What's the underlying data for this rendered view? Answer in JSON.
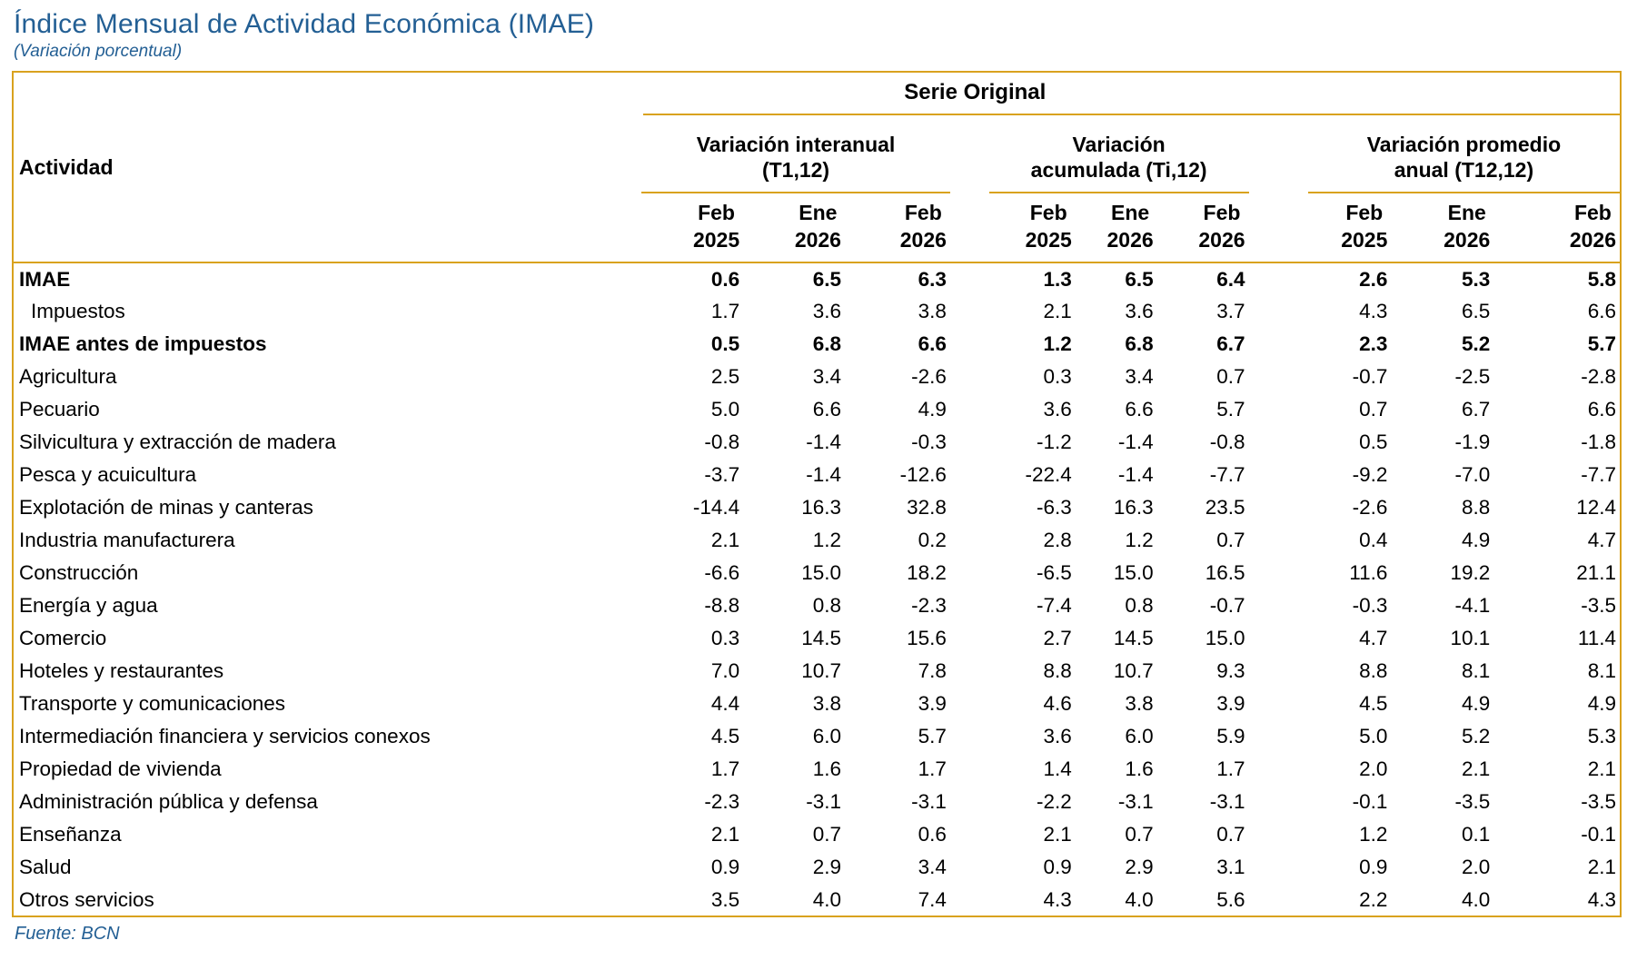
{
  "header": {
    "title": "Índice Mensual de Actividad Económica (IMAE)",
    "subtitle": "(Variación porcentual)"
  },
  "footer": {
    "source": "Fuente: BCN"
  },
  "colors": {
    "accent_gold": "#D9A21E",
    "heading_blue": "#235F94",
    "text": "#000000"
  },
  "table": {
    "activity_header": "Actividad",
    "series_header": "Serie Original",
    "groups": [
      {
        "line1": "Variación interanual",
        "line2": "(T1,12)"
      },
      {
        "line1": "Variación",
        "line2": "acumulada (Ti,12)"
      },
      {
        "line1": "Variación promedio",
        "line2": "anual (T12,12)"
      }
    ],
    "periods": [
      {
        "month": "Feb",
        "year": "2025"
      },
      {
        "month": "Ene",
        "year": "2026"
      },
      {
        "month": "Feb",
        "year": "2026"
      },
      {
        "month": "Feb",
        "year": "2025"
      },
      {
        "month": "Ene",
        "year": "2026"
      },
      {
        "month": "Feb",
        "year": "2026"
      },
      {
        "month": "Feb",
        "year": "2025"
      },
      {
        "month": "Ene",
        "year": "2026"
      },
      {
        "month": "Feb",
        "year": "2026"
      }
    ],
    "rows": [
      {
        "label": "IMAE",
        "bold": true,
        "indent": false,
        "values": [
          "0.6",
          "6.5",
          "6.3",
          "1.3",
          "6.5",
          "6.4",
          "2.6",
          "5.3",
          "5.8"
        ]
      },
      {
        "label": "Impuestos",
        "bold": false,
        "indent": true,
        "values": [
          "1.7",
          "3.6",
          "3.8",
          "2.1",
          "3.6",
          "3.7",
          "4.3",
          "6.5",
          "6.6"
        ]
      },
      {
        "label": "IMAE antes de impuestos",
        "bold": true,
        "indent": false,
        "values": [
          "0.5",
          "6.8",
          "6.6",
          "1.2",
          "6.8",
          "6.7",
          "2.3",
          "5.2",
          "5.7"
        ]
      },
      {
        "label": "Agricultura",
        "bold": false,
        "indent": false,
        "values": [
          "2.5",
          "3.4",
          "-2.6",
          "0.3",
          "3.4",
          "0.7",
          "-0.7",
          "-2.5",
          "-2.8"
        ]
      },
      {
        "label": "Pecuario",
        "bold": false,
        "indent": false,
        "values": [
          "5.0",
          "6.6",
          "4.9",
          "3.6",
          "6.6",
          "5.7",
          "0.7",
          "6.7",
          "6.6"
        ]
      },
      {
        "label": "Silvicultura y extracción de madera",
        "bold": false,
        "indent": false,
        "values": [
          "-0.8",
          "-1.4",
          "-0.3",
          "-1.2",
          "-1.4",
          "-0.8",
          "0.5",
          "-1.9",
          "-1.8"
        ]
      },
      {
        "label": "Pesca y acuicultura",
        "bold": false,
        "indent": false,
        "values": [
          "-3.7",
          "-1.4",
          "-12.6",
          "-22.4",
          "-1.4",
          "-7.7",
          "-9.2",
          "-7.0",
          "-7.7"
        ]
      },
      {
        "label": "Explotación de minas y canteras",
        "bold": false,
        "indent": false,
        "values": [
          "-14.4",
          "16.3",
          "32.8",
          "-6.3",
          "16.3",
          "23.5",
          "-2.6",
          "8.8",
          "12.4"
        ]
      },
      {
        "label": "Industria manufacturera",
        "bold": false,
        "indent": false,
        "values": [
          "2.1",
          "1.2",
          "0.2",
          "2.8",
          "1.2",
          "0.7",
          "0.4",
          "4.9",
          "4.7"
        ]
      },
      {
        "label": "Construcción",
        "bold": false,
        "indent": false,
        "values": [
          "-6.6",
          "15.0",
          "18.2",
          "-6.5",
          "15.0",
          "16.5",
          "11.6",
          "19.2",
          "21.1"
        ]
      },
      {
        "label": "Energía y agua",
        "bold": false,
        "indent": false,
        "values": [
          "-8.8",
          "0.8",
          "-2.3",
          "-7.4",
          "0.8",
          "-0.7",
          "-0.3",
          "-4.1",
          "-3.5"
        ]
      },
      {
        "label": "Comercio",
        "bold": false,
        "indent": false,
        "values": [
          "0.3",
          "14.5",
          "15.6",
          "2.7",
          "14.5",
          "15.0",
          "4.7",
          "10.1",
          "11.4"
        ]
      },
      {
        "label": "Hoteles y restaurantes",
        "bold": false,
        "indent": false,
        "values": [
          "7.0",
          "10.7",
          "7.8",
          "8.8",
          "10.7",
          "9.3",
          "8.8",
          "8.1",
          "8.1"
        ]
      },
      {
        "label": "Transporte y comunicaciones",
        "bold": false,
        "indent": false,
        "values": [
          "4.4",
          "3.8",
          "3.9",
          "4.6",
          "3.8",
          "3.9",
          "4.5",
          "4.9",
          "4.9"
        ]
      },
      {
        "label": "Intermediación financiera y servicios conexos",
        "bold": false,
        "indent": false,
        "values": [
          "4.5",
          "6.0",
          "5.7",
          "3.6",
          "6.0",
          "5.9",
          "5.0",
          "5.2",
          "5.3"
        ]
      },
      {
        "label": "Propiedad de vivienda",
        "bold": false,
        "indent": false,
        "values": [
          "1.7",
          "1.6",
          "1.7",
          "1.4",
          "1.6",
          "1.7",
          "2.0",
          "2.1",
          "2.1"
        ]
      },
      {
        "label": "Administración pública y defensa",
        "bold": false,
        "indent": false,
        "values": [
          "-2.3",
          "-3.1",
          "-3.1",
          "-2.2",
          "-3.1",
          "-3.1",
          "-0.1",
          "-3.5",
          "-3.5"
        ]
      },
      {
        "label": "Enseñanza",
        "bold": false,
        "indent": false,
        "values": [
          "2.1",
          "0.7",
          "0.6",
          "2.1",
          "0.7",
          "0.7",
          "1.2",
          "0.1",
          "-0.1"
        ]
      },
      {
        "label": "Salud",
        "bold": false,
        "indent": false,
        "values": [
          "0.9",
          "2.9",
          "3.4",
          "0.9",
          "2.9",
          "3.1",
          "0.9",
          "2.0",
          "2.1"
        ]
      },
      {
        "label": "Otros servicios",
        "bold": false,
        "indent": false,
        "values": [
          "3.5",
          "4.0",
          "7.4",
          "4.3",
          "4.0",
          "5.6",
          "2.2",
          "4.0",
          "4.3"
        ]
      }
    ]
  }
}
